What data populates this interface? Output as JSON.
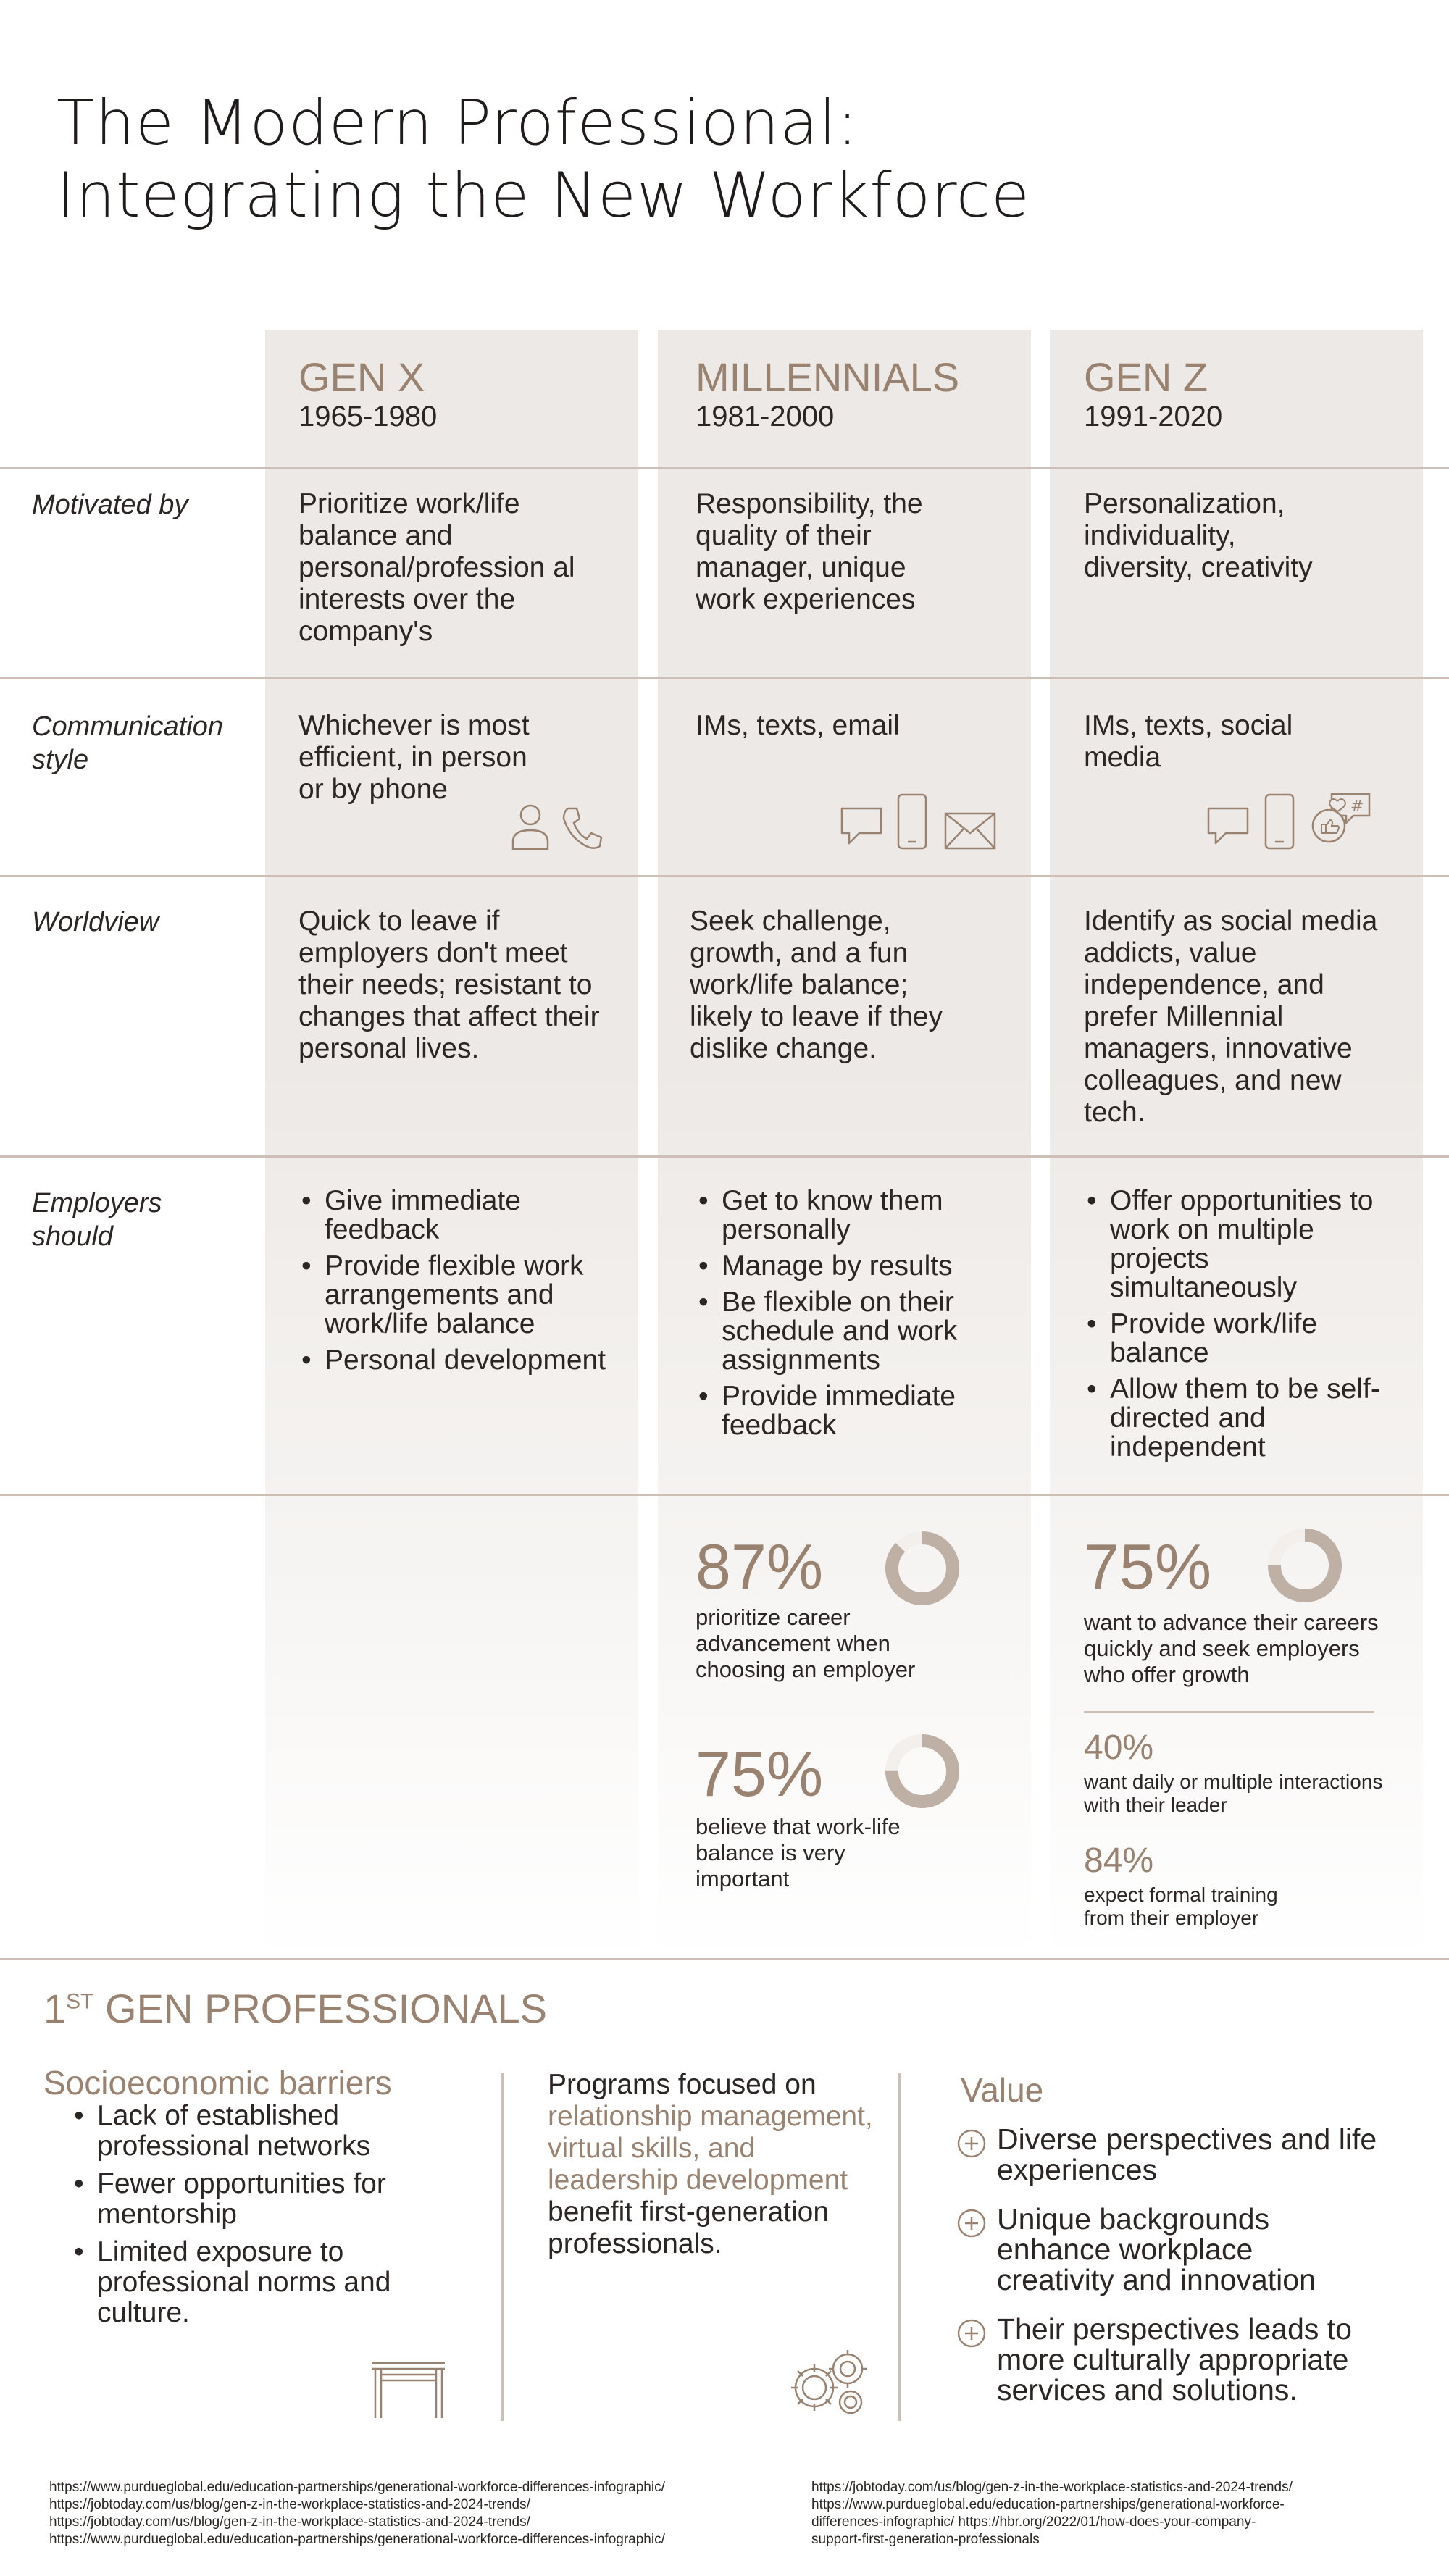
{
  "title": {
    "line1": "The Modern Professional:",
    "line2": "Integrating the New Workforce"
  },
  "generations": [
    {
      "name": "GEN X",
      "years": "1965-1980"
    },
    {
      "name": "MILLENNIALS",
      "years": "1981-2000"
    },
    {
      "name": "GEN Z",
      "years": "1991-2020"
    }
  ],
  "rows": {
    "motivated": {
      "label": "Motivated by",
      "genx": "Prioritize work/life balance and personal/profession al interests over the company's",
      "millennials": "Responsibility, the quality of their manager, unique work experiences",
      "genz": "Personalization, individuality, diversity, creativity"
    },
    "communication": {
      "label": "Communication style",
      "genx": "Whichever is most efficient, in person or by phone",
      "millennials": "IMs, texts, email",
      "genz": "IMs, texts, social media"
    },
    "worldview": {
      "label": "Worldview",
      "genx": "Quick to leave if employers don't meet their needs; resistant to changes that affect their personal lives.",
      "millennials": "Seek challenge, growth, and a fun work/life balance; likely to leave if they dislike change.",
      "genz": "Identify as social media addicts, value independence, and prefer Millennial managers, innovative colleagues, and new tech."
    },
    "employers": {
      "label": "Employers should",
      "genx": [
        "Give immediate feedback",
        "Provide flexible work arrangements and work/life balance",
        "Personal development"
      ],
      "millennials": [
        "Get to know them personally",
        "Manage by results",
        "Be flexible on their schedule and work assignments",
        "Provide immediate feedback"
      ],
      "genz": [
        "Offer opportunities to work on multiple projects simultaneously",
        "Provide work/life balance",
        "Allow them to be self-directed and independent"
      ]
    }
  },
  "stats": {
    "millennials": [
      {
        "value": "87%",
        "percent": 87,
        "text": "prioritize career advancement when choosing an employer"
      },
      {
        "value": "75%",
        "percent": 75,
        "text": "believe that work-life balance is very important"
      }
    ],
    "genz": [
      {
        "value": "75%",
        "percent": 75,
        "text": "want to advance their careers quickly and seek employers who offer growth"
      },
      {
        "value": "40%",
        "text": "want daily or multiple interactions with their leader"
      },
      {
        "value": "84%",
        "text": "expect formal training from their employer"
      }
    ]
  },
  "first_gen": {
    "heading_num": "1",
    "heading_sup": "ST",
    "heading_rest": " GEN PROFESSIONALS",
    "barriers_title": "Socioeconomic barriers",
    "barriers": [
      "Lack of established professional networks",
      "Fewer opportunities for mentorship",
      "Limited exposure to professional norms and culture."
    ],
    "programs_pre": "Programs focused on ",
    "programs_highlight": "relationship management, virtual skills, and leadership development",
    "programs_post": " benefit first-generation professionals.",
    "value_title": "Value",
    "values": [
      "Diverse perspectives and life experiences",
      "Unique backgrounds enhance workplace creativity and innovation",
      "Their perspectives leads to more culturally appropriate services and solutions."
    ]
  },
  "references": {
    "left": [
      "https://www.purdueglobal.edu/education-partnerships/generational-workforce-differences-infographic/",
      "https://jobtoday.com/us/blog/gen-z-in-the-workplace-statistics-and-2024-trends/",
      "https://jobtoday.com/us/blog/gen-z-in-the-workplace-statistics-and-2024-trends/",
      "https://www.purdueglobal.edu/education-partnerships/generational-workforce-differences-infographic/"
    ],
    "right": [
      "https://jobtoday.com/us/blog/gen-z-in-the-workplace-statistics-and-2024-trends/",
      "https://www.purdueglobal.edu/education-partnerships/generational-workforce-",
      "differences-infographic/ https://hbr.org/2022/01/how-does-your-company-",
      "support-first-generation-professionals"
    ]
  },
  "colors": {
    "accent": "#9a8270",
    "ring": "#bfb0a5",
    "ring_bg": "#f3efec",
    "line": "#cdbfb6"
  }
}
